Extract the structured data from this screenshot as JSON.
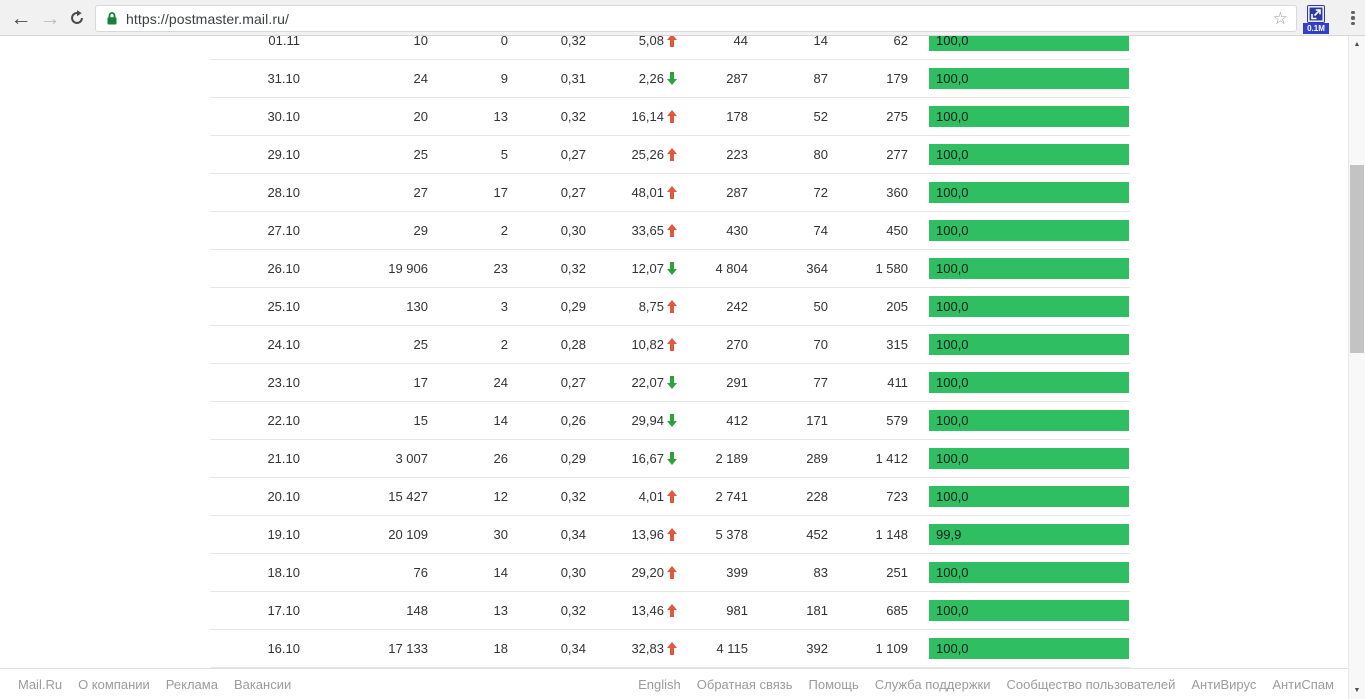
{
  "browser": {
    "url": "https://postmaster.mail.ru/",
    "extension_badge": "0.1M"
  },
  "colors": {
    "bar_green": "#2fbe62",
    "trend_up": "#e2573d",
    "trend_down": "#2ca23c"
  },
  "table": {
    "rows": [
      {
        "date": "01.11",
        "v1": "10",
        "v2": "0",
        "v3": "0,32",
        "pct": "5,08",
        "trend": "up",
        "v4": "44",
        "v5": "14",
        "v6": "62",
        "bar_label": "100,0",
        "bar_pct": 100
      },
      {
        "date": "31.10",
        "v1": "24",
        "v2": "9",
        "v3": "0,31",
        "pct": "2,26",
        "trend": "down",
        "v4": "287",
        "v5": "87",
        "v6": "179",
        "bar_label": "100,0",
        "bar_pct": 100
      },
      {
        "date": "30.10",
        "v1": "20",
        "v2": "13",
        "v3": "0,32",
        "pct": "16,14",
        "trend": "up",
        "v4": "178",
        "v5": "52",
        "v6": "275",
        "bar_label": "100,0",
        "bar_pct": 100
      },
      {
        "date": "29.10",
        "v1": "25",
        "v2": "5",
        "v3": "0,27",
        "pct": "25,26",
        "trend": "up",
        "v4": "223",
        "v5": "80",
        "v6": "277",
        "bar_label": "100,0",
        "bar_pct": 100
      },
      {
        "date": "28.10",
        "v1": "27",
        "v2": "17",
        "v3": "0,27",
        "pct": "48,01",
        "trend": "up",
        "v4": "287",
        "v5": "72",
        "v6": "360",
        "bar_label": "100,0",
        "bar_pct": 100
      },
      {
        "date": "27.10",
        "v1": "29",
        "v2": "2",
        "v3": "0,30",
        "pct": "33,65",
        "trend": "up",
        "v4": "430",
        "v5": "74",
        "v6": "450",
        "bar_label": "100,0",
        "bar_pct": 100
      },
      {
        "date": "26.10",
        "v1": "19 906",
        "v2": "23",
        "v3": "0,32",
        "pct": "12,07",
        "trend": "down",
        "v4": "4 804",
        "v5": "364",
        "v6": "1 580",
        "bar_label": "100,0",
        "bar_pct": 100
      },
      {
        "date": "25.10",
        "v1": "130",
        "v2": "3",
        "v3": "0,29",
        "pct": "8,75",
        "trend": "up",
        "v4": "242",
        "v5": "50",
        "v6": "205",
        "bar_label": "100,0",
        "bar_pct": 100
      },
      {
        "date": "24.10",
        "v1": "25",
        "v2": "2",
        "v3": "0,28",
        "pct": "10,82",
        "trend": "up",
        "v4": "270",
        "v5": "70",
        "v6": "315",
        "bar_label": "100,0",
        "bar_pct": 100
      },
      {
        "date": "23.10",
        "v1": "17",
        "v2": "24",
        "v3": "0,27",
        "pct": "22,07",
        "trend": "down",
        "v4": "291",
        "v5": "77",
        "v6": "411",
        "bar_label": "100,0",
        "bar_pct": 100
      },
      {
        "date": "22.10",
        "v1": "15",
        "v2": "14",
        "v3": "0,26",
        "pct": "29,94",
        "trend": "down",
        "v4": "412",
        "v5": "171",
        "v6": "579",
        "bar_label": "100,0",
        "bar_pct": 100
      },
      {
        "date": "21.10",
        "v1": "3 007",
        "v2": "26",
        "v3": "0,29",
        "pct": "16,67",
        "trend": "down",
        "v4": "2 189",
        "v5": "289",
        "v6": "1 412",
        "bar_label": "100,0",
        "bar_pct": 100
      },
      {
        "date": "20.10",
        "v1": "15 427",
        "v2": "12",
        "v3": "0,32",
        "pct": "4,01",
        "trend": "up",
        "v4": "2 741",
        "v5": "228",
        "v6": "723",
        "bar_label": "100,0",
        "bar_pct": 100
      },
      {
        "date": "19.10",
        "v1": "20 109",
        "v2": "30",
        "v3": "0,34",
        "pct": "13,96",
        "trend": "up",
        "v4": "5 378",
        "v5": "452",
        "v6": "1 148",
        "bar_label": "99,9",
        "bar_pct": 99.9
      },
      {
        "date": "18.10",
        "v1": "76",
        "v2": "14",
        "v3": "0,30",
        "pct": "29,20",
        "trend": "up",
        "v4": "399",
        "v5": "83",
        "v6": "251",
        "bar_label": "100,0",
        "bar_pct": 100
      },
      {
        "date": "17.10",
        "v1": "148",
        "v2": "13",
        "v3": "0,32",
        "pct": "13,46",
        "trend": "up",
        "v4": "981",
        "v5": "181",
        "v6": "685",
        "bar_label": "100,0",
        "bar_pct": 100
      },
      {
        "date": "16.10",
        "v1": "17 133",
        "v2": "18",
        "v3": "0,34",
        "pct": "32,83",
        "trend": "up",
        "v4": "4 115",
        "v5": "392",
        "v6": "1 109",
        "bar_label": "100,0",
        "bar_pct": 100
      }
    ]
  },
  "footer": {
    "left": [
      "Mail.Ru",
      "О компании",
      "Реклама",
      "Вакансии"
    ],
    "right": [
      "English",
      "Обратная связь",
      "Помощь",
      "Служба поддержки",
      "Сообщество пользователей",
      "АнтиВирус",
      "АнтиСпам"
    ]
  }
}
